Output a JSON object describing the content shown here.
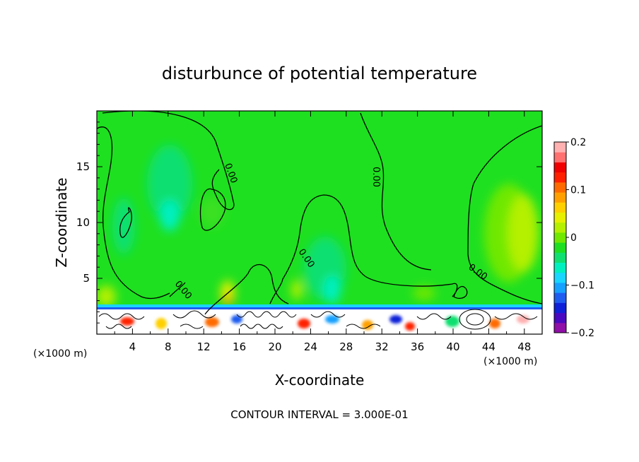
{
  "chart_data": {
    "type": "heatmap",
    "title": "disturbunce of potential temperature",
    "xlabel": "X-coordinate",
    "ylabel": "Z-coordinate",
    "x_unit": "(×1000 m)",
    "x_unit_right": "(×1000 m)",
    "xlim": [
      0,
      50
    ],
    "ylim": [
      0,
      20
    ],
    "x_ticks": [
      4,
      8,
      12,
      16,
      20,
      24,
      28,
      32,
      36,
      40,
      44,
      48
    ],
    "y_ticks": [
      5,
      10,
      15
    ],
    "colorbar": {
      "range": [
        -0.2,
        0.2
      ],
      "tick_values": [
        0.2,
        0.1,
        0,
        -0.1,
        -0.2
      ],
      "tick_labels": [
        "0.2",
        "0.1",
        "0",
        "−0.1",
        "−0.2"
      ],
      "colors": [
        "#8f0fa8",
        "#4a08c0",
        "#1020d8",
        "#1f5cf0",
        "#16a0ff",
        "#18d6ff",
        "#00f0c0",
        "#10e070",
        "#1ee020",
        "#70e800",
        "#b4f000",
        "#e6f000",
        "#ffd000",
        "#ffa000",
        "#ff6a00",
        "#ff2000",
        "#f00000",
        "#ff7070",
        "#ffb0b0"
      ]
    },
    "contour_labels": [
      "0.00",
      "0.00",
      "0.00",
      "0.00",
      "0.00"
    ],
    "contour_interval_text": "CONTOUR INTERVAL = 3.000E-01"
  }
}
